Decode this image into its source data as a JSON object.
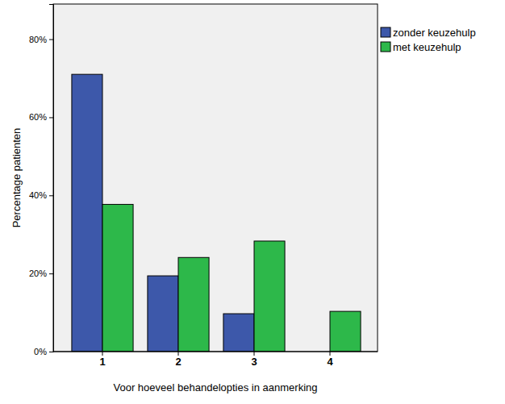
{
  "chart_data": {
    "type": "bar",
    "x_label": "Voor hoeveel behandelopties in aanmerking",
    "y_label": "Percentage patienten",
    "categories": [
      "1",
      "2",
      "3",
      "4"
    ],
    "series": [
      {
        "name": "zonder keuzehulp",
        "color": "#3d58aa",
        "values": [
          71,
          19.4,
          9.7,
          0
        ]
      },
      {
        "name": "met keuzehulp",
        "color": "#2db84a",
        "values": [
          37.7,
          24.1,
          28.3,
          10.3
        ]
      }
    ],
    "ylim": [
      0,
      89
    ],
    "yticks": [
      {
        "value": 0,
        "label": "0%"
      },
      {
        "value": 20,
        "label": "20%"
      },
      {
        "value": 40,
        "label": "40%"
      },
      {
        "value": 60,
        "label": "60%"
      },
      {
        "value": 80,
        "label": "80%"
      }
    ],
    "grid": false,
    "legend": "right"
  }
}
